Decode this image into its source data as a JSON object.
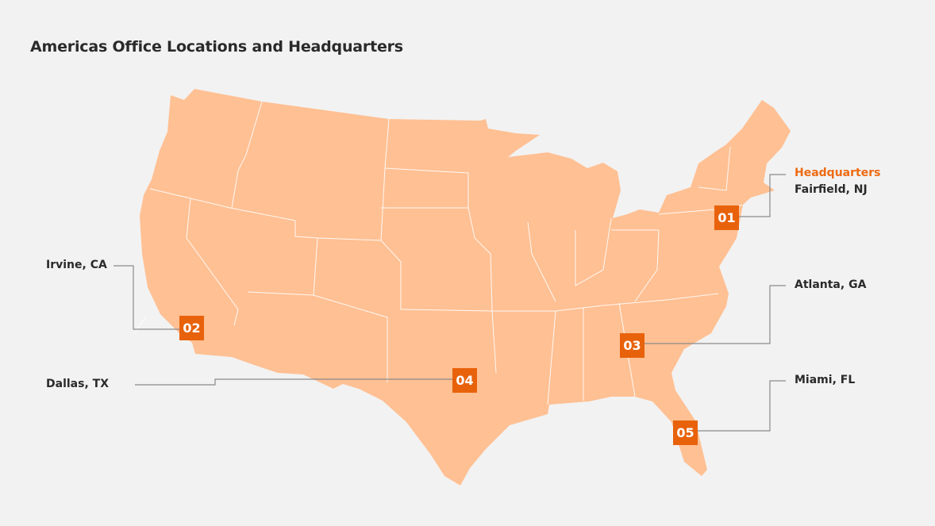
{
  "title": "Americas Office Locations and Headquarters",
  "colors": {
    "background": "#f2f2f2",
    "map_fill": "#ffc093",
    "marker": "#e8620c",
    "headquarters_text": "#ee6a12",
    "leader_line": "#8a8a8a"
  },
  "locations": [
    {
      "number": "01",
      "tag": "Headquarters",
      "name": "Fairfield, NJ"
    },
    {
      "number": "02",
      "name": "Irvine, CA"
    },
    {
      "number": "03",
      "name": "Atlanta, GA"
    },
    {
      "number": "04",
      "name": "Dallas, TX"
    },
    {
      "number": "05",
      "name": "Miami, FL"
    }
  ]
}
